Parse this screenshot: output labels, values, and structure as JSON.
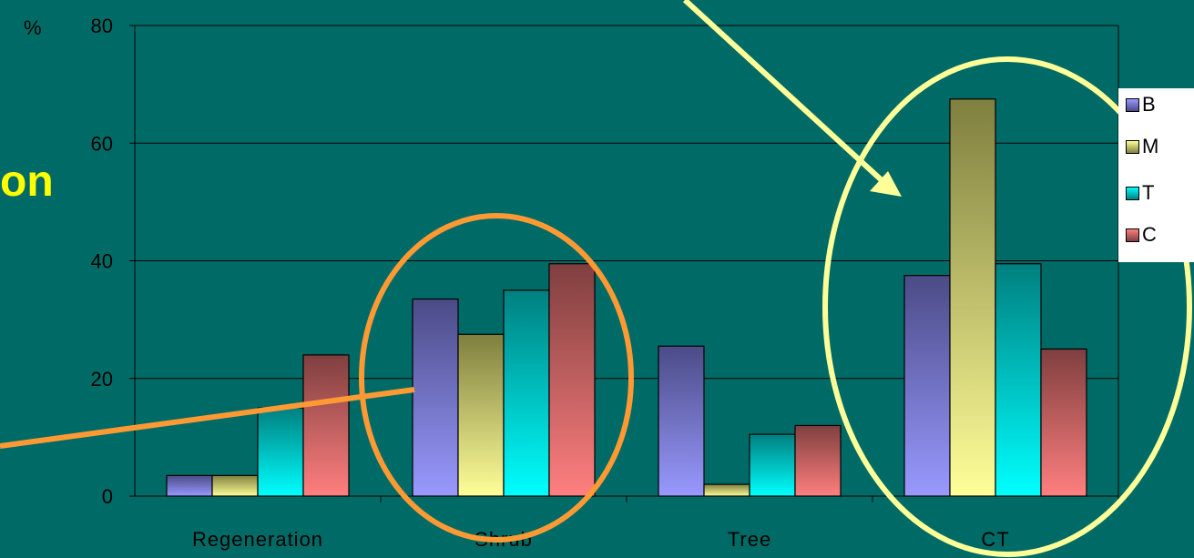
{
  "partial_title": "on",
  "y_unit": "%",
  "colors": {
    "background": "#006B66",
    "gridline": "#000000",
    "orange_annotation": "#FF9933",
    "yellow_annotation": "#FFFF99"
  },
  "chart_data": {
    "type": "bar",
    "categories": [
      "Regeneration",
      "Shrub",
      "Tree",
      "CT"
    ],
    "series": [
      {
        "name": "B",
        "values": [
          3.5,
          33.5,
          25.5,
          37.5
        ],
        "color_top": "#4B4B87",
        "color_bottom": "#9999FF"
      },
      {
        "name": "M",
        "values": [
          3.5,
          27.5,
          2,
          67.5
        ],
        "color_top": "#7F7F3F",
        "color_bottom": "#FFFF99"
      },
      {
        "name": "T",
        "values": [
          15,
          35,
          10.5,
          39.5
        ],
        "color_top": "#007F7F",
        "color_bottom": "#00FFFF"
      },
      {
        "name": "C",
        "values": [
          24,
          39.5,
          12,
          25
        ],
        "color_top": "#7F3F3F",
        "color_bottom": "#FF7F7F"
      }
    ],
    "y_ticks": [
      "0",
      "20",
      "40",
      "60",
      "80"
    ],
    "ylim": [
      0,
      80
    ],
    "xlabel": "",
    "ylabel": "%",
    "grid": true,
    "legend_position": "right"
  }
}
